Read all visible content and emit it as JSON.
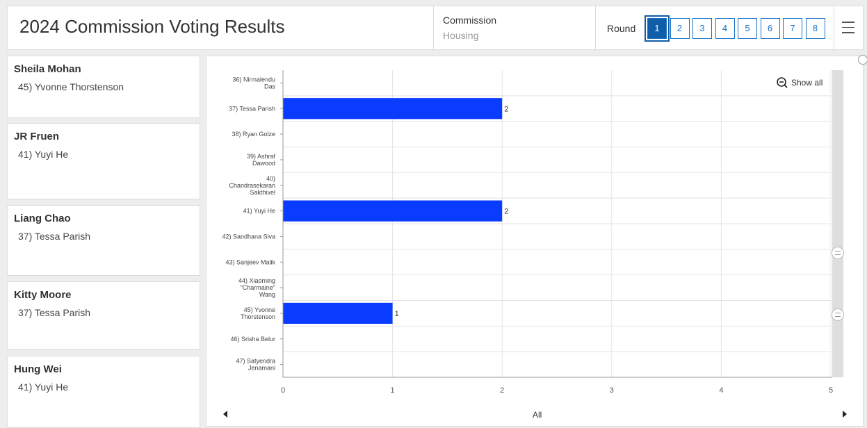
{
  "header": {
    "title": "2024 Commission Voting Results",
    "commission_label": "Commission",
    "commission_value": "Housing",
    "round_label": "Round",
    "rounds": [
      "1",
      "2",
      "3",
      "4",
      "5",
      "6",
      "7",
      "8"
    ],
    "active_round": "1"
  },
  "votes": [
    {
      "voter": "Sheila Mohan",
      "vote": "45) Yvonne Thorstenson"
    },
    {
      "voter": "JR Fruen",
      "vote": "41) Yuyi He"
    },
    {
      "voter": "Liang Chao",
      "vote": "37) Tessa Parish"
    },
    {
      "voter": "Kitty Moore",
      "vote": "37) Tessa Parish"
    },
    {
      "voter": "Hung Wei",
      "vote": "41) Yuyi He"
    }
  ],
  "chart_controls": {
    "show_all_label": "Show all",
    "bottom_label": "All"
  },
  "chart_data": {
    "type": "bar",
    "orientation": "horizontal",
    "categories": [
      [
        "36) Nirmalendu",
        "Das"
      ],
      [
        "37) Tessa Parish"
      ],
      [
        "38) Ryan Golze"
      ],
      [
        "39) Ashraf",
        "Dawood"
      ],
      [
        "40)",
        "Chandrasekaran",
        "Sakthivel"
      ],
      [
        "41) Yuyi He"
      ],
      [
        "42) Sandhana Siva"
      ],
      [
        "43) Sanjeev Malik"
      ],
      [
        "44) Xiaoming",
        "\"Charmaine\"",
        "Wang"
      ],
      [
        "45) Yvonne",
        "Thorstenson"
      ],
      [
        "46) Srisha Belur"
      ],
      [
        "47) Satyendra",
        "Jenamani"
      ]
    ],
    "values": [
      null,
      2,
      null,
      null,
      null,
      2,
      null,
      null,
      null,
      1,
      null,
      null
    ],
    "xlim": [
      0,
      5
    ],
    "xticks": [
      "0",
      "1",
      "2",
      "3",
      "4",
      "5"
    ],
    "grid": true,
    "bar_color": "#0a3cff"
  }
}
